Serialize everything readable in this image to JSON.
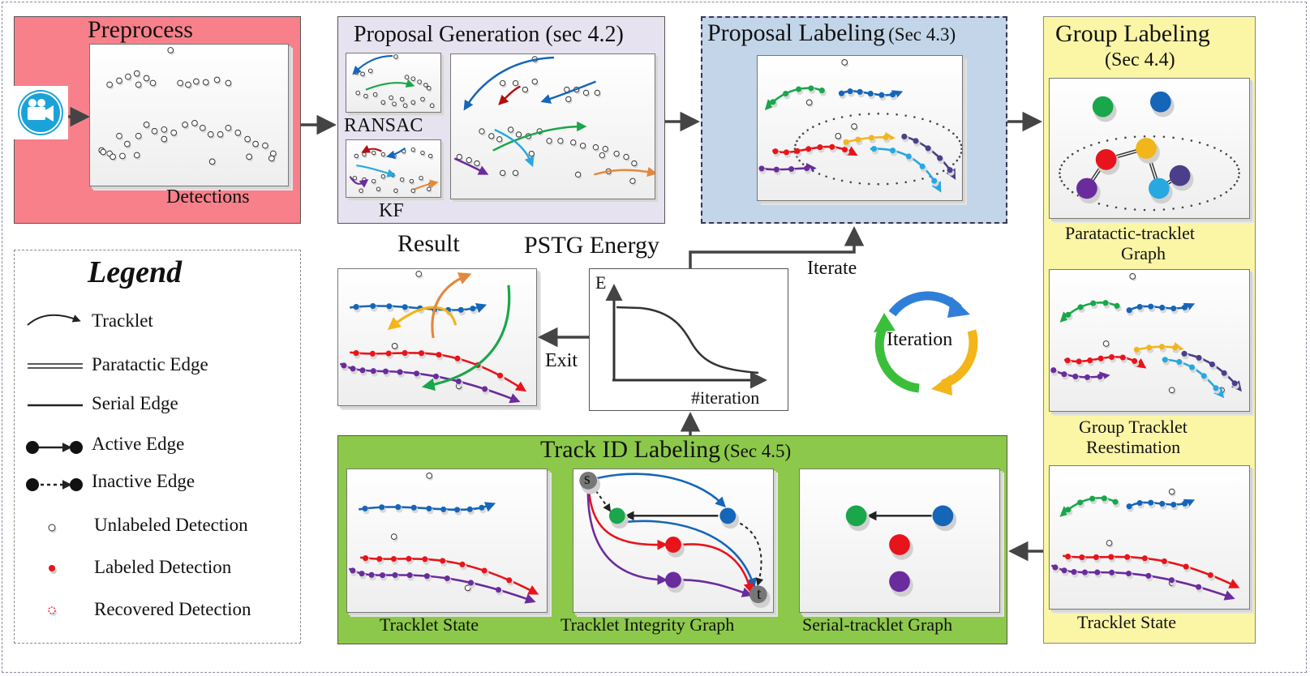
{
  "stages": {
    "preprocess": {
      "title": "Preprocess",
      "caption": "Detections"
    },
    "proposal_generation": {
      "title": "Proposal Generation (sec 4.2)",
      "ransac": "RANSAC",
      "kf": "KF"
    },
    "proposal_labeling": {
      "title": "Proposal Labeling",
      "sec": "(Sec 4.3)"
    },
    "group_labeling": {
      "title": "Group Labeling",
      "sec": "(Sec 4.4)",
      "graph_caption_1": "Paratactic-tracklet",
      "graph_caption_2": "Graph",
      "reest_caption_1": "Group Tracklet",
      "reest_caption_2": "Reestimation",
      "state_caption": "Tracklet State"
    },
    "track_id_labeling": {
      "title": "Track ID Labeling",
      "sec": "(Sec 4.5)",
      "state_caption": "Tracklet State",
      "integrity_caption": "Tracklet Integrity Graph",
      "serial_caption": "Serial-tracklet Graph",
      "source": "s",
      "sink": "t"
    },
    "result": {
      "title": "Result"
    },
    "energy": {
      "title": "PSTG Energy",
      "y_axis": "E",
      "x_axis": "#iteration"
    },
    "flow": {
      "iterate": "Iterate",
      "exit": "Exit",
      "iteration": "Iteration"
    }
  },
  "legend": {
    "title": "Legend",
    "items": [
      {
        "icon": "tracklet-icon",
        "label": "Tracklet"
      },
      {
        "icon": "paratactic-edge-icon",
        "label": "Paratactic Edge"
      },
      {
        "icon": "serial-edge-icon",
        "label": "Serial Edge"
      },
      {
        "icon": "active-edge-icon",
        "label": "Active Edge"
      },
      {
        "icon": "inactive-edge-icon",
        "label": "Inactive Edge"
      },
      {
        "icon": "unlabeled-detection-icon",
        "label": "Unlabeled Detection"
      },
      {
        "icon": "labeled-detection-icon",
        "label": "Labeled Detection"
      },
      {
        "icon": "recovered-detection-icon",
        "label": "Recovered Detection"
      }
    ]
  },
  "colors": {
    "preprocess_bg": "#f8808a",
    "proposal_bg": "#e6e2f0",
    "labeling_bg": "#c3d5e8",
    "group_bg": "#fbf6a6",
    "trackid_bg": "#8cc94a",
    "green": "#1aa64a",
    "blue": "#1565b8",
    "red": "#e8141b",
    "purple": "#6a2c9c",
    "cyan": "#27a8e0",
    "orange": "#e6873a",
    "yellow": "#f2b51a",
    "navy": "#4b3f8a",
    "darkred": "#b21010",
    "camera": "#1ba3d8"
  }
}
